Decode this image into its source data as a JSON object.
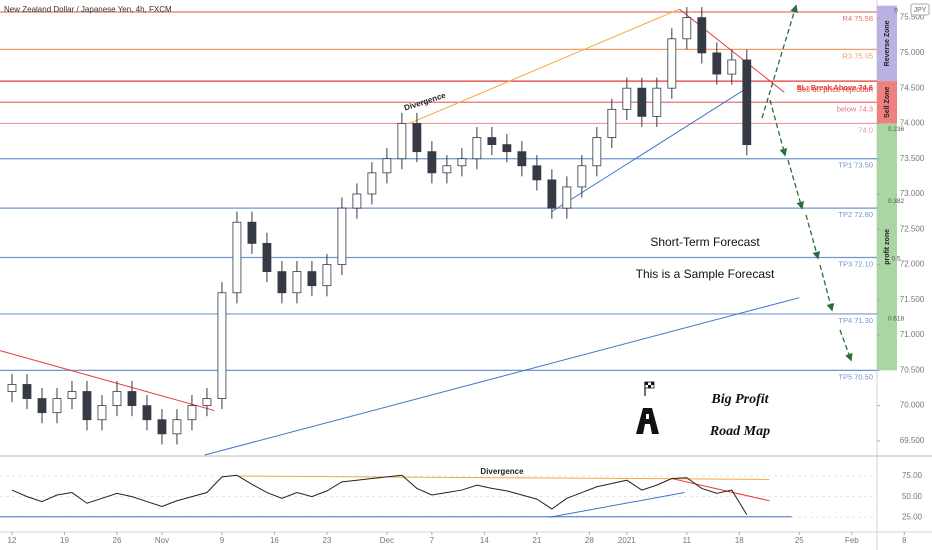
{
  "chart_data": {
    "type": "candlestick",
    "title": "New Zealand Dollar / Japanese Yen, 4h, FXCM",
    "currency": "JPY",
    "x": [
      0,
      2,
      4,
      6,
      8,
      10,
      12,
      14,
      16,
      18,
      20,
      22,
      24,
      26,
      28,
      30,
      32,
      34,
      36,
      38,
      40,
      42,
      44,
      46,
      48,
      50,
      52,
      54,
      56,
      58,
      60,
      62,
      64,
      66,
      68,
      70,
      72,
      74,
      76,
      78,
      80,
      82,
      84,
      86,
      88,
      90,
      92,
      94,
      96,
      98
    ],
    "open": [
      70.2,
      70.3,
      70.1,
      69.9,
      70.1,
      70.2,
      69.8,
      70.0,
      70.2,
      70.0,
      69.8,
      69.6,
      69.8,
      70.0,
      70.1,
      71.6,
      72.6,
      72.3,
      71.9,
      71.6,
      71.9,
      71.7,
      72.0,
      72.8,
      73.0,
      73.3,
      73.5,
      74.0,
      73.6,
      73.3,
      73.4,
      73.5,
      73.8,
      73.7,
      73.6,
      73.4,
      73.2,
      72.8,
      73.1,
      73.4,
      73.8,
      74.2,
      74.5,
      74.1,
      74.5,
      75.2,
      75.5,
      75.0,
      74.7,
      74.9
    ],
    "high": [
      70.45,
      70.45,
      70.25,
      70.25,
      70.35,
      70.35,
      70.15,
      70.35,
      70.35,
      70.15,
      69.95,
      69.95,
      70.15,
      70.25,
      71.75,
      72.75,
      72.75,
      72.45,
      72.05,
      72.05,
      72.05,
      72.15,
      72.95,
      73.15,
      73.45,
      73.65,
      74.15,
      74.15,
      73.75,
      73.55,
      73.65,
      73.95,
      73.95,
      73.85,
      73.75,
      73.55,
      73.35,
      73.25,
      73.55,
      73.95,
      74.35,
      74.65,
      74.65,
      74.65,
      75.35,
      75.65,
      75.65,
      75.15,
      75.05,
      75.05
    ],
    "low": [
      70.05,
      69.95,
      69.75,
      69.75,
      69.95,
      69.65,
      69.65,
      69.85,
      69.85,
      69.65,
      69.45,
      69.45,
      69.65,
      69.85,
      69.95,
      71.45,
      72.15,
      71.75,
      71.45,
      71.45,
      71.55,
      71.55,
      71.85,
      72.65,
      72.85,
      73.15,
      73.35,
      73.45,
      73.15,
      73.15,
      73.25,
      73.35,
      73.55,
      73.45,
      73.25,
      73.05,
      72.65,
      72.65,
      72.95,
      73.25,
      73.65,
      74.05,
      73.95,
      73.95,
      74.35,
      75.05,
      74.85,
      74.55,
      74.55,
      73.55
    ],
    "close": [
      70.3,
      70.1,
      69.9,
      70.1,
      70.2,
      69.8,
      70.0,
      70.2,
      70.0,
      69.8,
      69.6,
      69.8,
      70.0,
      70.1,
      71.6,
      72.6,
      72.3,
      71.9,
      71.6,
      71.9,
      71.7,
      72.0,
      72.8,
      73.0,
      73.3,
      73.5,
      74.0,
      73.6,
      73.3,
      73.4,
      73.5,
      73.8,
      73.7,
      73.6,
      73.4,
      73.2,
      72.8,
      73.1,
      73.4,
      73.8,
      74.2,
      74.5,
      74.1,
      74.5,
      75.2,
      75.5,
      75.0,
      74.7,
      74.9,
      73.7
    ],
    "up_color": "#ffffff",
    "down_color": "#363a45",
    "xlim": [
      -1.6,
      122.7
    ],
    "xticks": [
      {
        "value": 0,
        "label": "12"
      },
      {
        "value": 7,
        "label": "19"
      },
      {
        "value": 14,
        "label": "26"
      },
      {
        "value": 20,
        "label": "Nov"
      },
      {
        "value": 28,
        "label": "9"
      },
      {
        "value": 35,
        "label": "16"
      },
      {
        "value": 42,
        "label": "23"
      },
      {
        "value": 50,
        "label": "Dec"
      },
      {
        "value": 56,
        "label": "7"
      },
      {
        "value": 63,
        "label": "14"
      },
      {
        "value": 70,
        "label": "21"
      },
      {
        "value": 77,
        "label": "28"
      },
      {
        "value": 82,
        "label": "2021"
      },
      {
        "value": 90,
        "label": "11"
      },
      {
        "value": 97,
        "label": "18"
      },
      {
        "value": 105,
        "label": "25"
      },
      {
        "value": 112,
        "label": "Feb"
      },
      {
        "value": 119,
        "label": "8"
      }
    ],
    "ylim": [
      69.3,
      75.75
    ],
    "yticks": [
      {
        "value": 69.5,
        "label": "69.500"
      },
      {
        "value": 70,
        "label": "70.000"
      },
      {
        "value": 70.5,
        "label": "70.500"
      },
      {
        "value": 71,
        "label": "71.000"
      },
      {
        "value": 71.5,
        "label": "71.500"
      },
      {
        "value": 72,
        "label": "72.000"
      },
      {
        "value": 72.5,
        "label": "72.500"
      },
      {
        "value": 73,
        "label": "73.000"
      },
      {
        "value": 73.5,
        "label": "73.500"
      },
      {
        "value": 74,
        "label": "74.000"
      },
      {
        "value": 74.5,
        "label": "74.500"
      },
      {
        "value": 75,
        "label": "75.000"
      },
      {
        "value": 75.5,
        "label": "75.500"
      }
    ],
    "levels": [
      {
        "label": "R4 75.58",
        "value": 75.58,
        "color": "#e57373"
      },
      {
        "label": "R3 75.05",
        "value": 75.05,
        "color": "#f0a070"
      },
      {
        "label": "SL: Break Above 74.6",
        "value": 74.6,
        "color": "#e53935"
      },
      {
        "label": "below 74.3",
        "value": 74.3,
        "color": "#e57373"
      },
      {
        "label": "74.0",
        "value": 74.0,
        "color": "#ef9a9a"
      },
      {
        "label": "TP1 73.50",
        "value": 73.5,
        "color": "#6f96d1"
      },
      {
        "label": "TP2 72.80",
        "value": 72.8,
        "color": "#6f96d1"
      },
      {
        "label": "TP3 72.10",
        "value": 72.1,
        "color": "#6f96d1"
      },
      {
        "label": "TP4 71.30",
        "value": 71.3,
        "color": "#6f96d1"
      },
      {
        "label": "TP5 70.50",
        "value": 70.5,
        "color": "#6f96d1"
      }
    ],
    "zones": [
      {
        "label": "Reverse Zone",
        "from": 74.6,
        "to": 75.67,
        "color": "#b9b2e2"
      },
      {
        "label": "Sell Zone",
        "from": 74.0,
        "to": 74.6,
        "color": "#f07f7f"
      },
      {
        "label": "profit zone",
        "from": 70.5,
        "to": 74.0,
        "color": "#a9d6a3"
      }
    ],
    "fib": [
      {
        "label": "0",
        "price": 75.6
      },
      {
        "label": "0.236",
        "price": 73.92
      },
      {
        "label": "0.382",
        "price": 72.9
      },
      {
        "label": "0.5",
        "price": 72.08
      },
      {
        "label": "0.618",
        "price": 71.23
      }
    ],
    "trendlines": [
      {
        "from": [
          53,
          74.0
        ],
        "to": [
          89,
          75.62
        ],
        "color": "#f5a742"
      },
      {
        "from": [
          89,
          75.62
        ],
        "to": [
          103,
          74.44
        ],
        "color": "#e53935"
      },
      {
        "from": [
          72,
          72.75
        ],
        "to": [
          98,
          74.5
        ],
        "color": "#3f76c6"
      },
      {
        "from": [
          25.7,
          69.3
        ],
        "to": [
          105,
          71.53
        ],
        "color": "#3f76c6"
      },
      {
        "from": [
          -1.6,
          70.78
        ],
        "to": [
          27,
          69.93
        ],
        "color": "#e53935"
      }
    ],
    "annotations": [
      "Divergence",
      "Sell on price rejection",
      "Short-Term Forecast",
      "This is a Sample Forecast",
      "Big Profit",
      "Road Map"
    ],
    "rsi": {
      "values": [
        58,
        50,
        44,
        52,
        55,
        42,
        48,
        54,
        50,
        44,
        38,
        45,
        50,
        55,
        74,
        76,
        65,
        55,
        48,
        55,
        50,
        57,
        68,
        70,
        72,
        74,
        76,
        60,
        52,
        55,
        58,
        64,
        60,
        57,
        52,
        47,
        35,
        48,
        55,
        62,
        66,
        70,
        58,
        64,
        72,
        73,
        60,
        54,
        58,
        28
      ],
      "ylim": [
        7,
        97
      ],
      "yticks": [
        {
          "value": 25,
          "label": "25.00"
        },
        {
          "value": 50,
          "label": "50.00"
        },
        {
          "value": 75,
          "label": "75.00"
        }
      ],
      "trendlines": [
        {
          "from": [
            30.4,
            75
          ],
          "to": [
            101,
            71
          ],
          "color": "#f5a742"
        },
        {
          "from": [
            88,
            72
          ],
          "to": [
            101,
            45
          ],
          "color": "#e53935"
        },
        {
          "from": [
            71.7,
            25
          ],
          "to": [
            89.7,
            55
          ],
          "color": "#3f76c6"
        },
        {
          "from": [
            -1.6,
            25.6
          ],
          "to": [
            104,
            25.6
          ],
          "color": "#3f76c6"
        }
      ],
      "annotation": "Divergence"
    }
  }
}
